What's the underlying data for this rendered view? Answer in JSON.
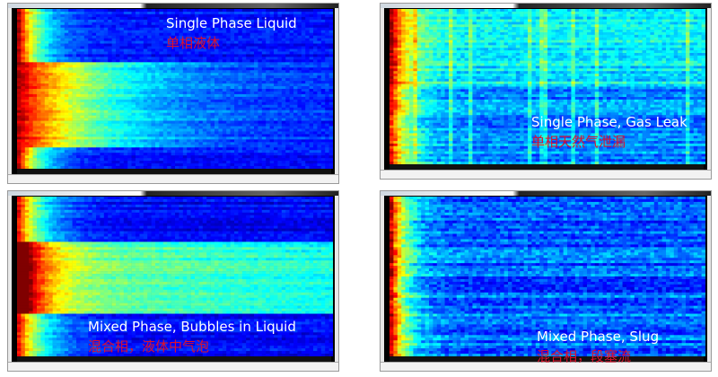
{
  "chart_data": [
    {
      "type": "heatmap",
      "colormap": "jet",
      "title": "Single Phase Liquid",
      "subtitle": "单相液体",
      "pattern": "energy concentrated at low frequencies, broader band in middle time range"
    },
    {
      "type": "heatmap",
      "colormap": "jet",
      "title": "Single Phase, Gas Leak",
      "subtitle": "单相天然气泄漏",
      "pattern": "broadband energy across all frequencies, weaker in lower half"
    },
    {
      "type": "heatmap",
      "colormap": "jet",
      "title": "Mixed Phase, Bubbles in Liquid",
      "subtitle": "混合相，液体中气泡",
      "pattern": "wide cyan band across all frequencies in middle time range"
    },
    {
      "type": "heatmap",
      "colormap": "jet",
      "title": "Mixed Phase, Slug",
      "subtitle": "混合相，段塞流",
      "pattern": "horizontal striations across frequencies"
    }
  ]
}
